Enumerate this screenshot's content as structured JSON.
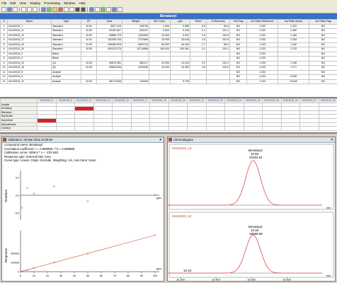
{
  "menu": [
    "File",
    "Edit",
    "View",
    "Display",
    "Processing",
    "Window",
    "Help"
  ],
  "results": {
    "title": "Benalaxyl",
    "columns": [
      "#",
      "Name",
      "Type",
      "RT",
      "Area",
      "Weight",
      "Std. Conc.",
      "ppb",
      "%Dev",
      "% Recovery",
      "S/N Flag",
      "Ion Ratio Reference",
      "Ion Ratio Actual",
      "Ion Ratio Flag"
    ],
    "rows": [
      [
        "1",
        "04142015_7",
        "Standard",
        "10.51",
        "3627.415",
        "105790",
        "1.000",
        "0.985",
        "-3.5",
        "96.5",
        "NO",
        "1.233",
        "1.422",
        "NO"
      ],
      [
        "2",
        "04142015_11",
        "Standard",
        "10.50",
        "20162.607",
        "494147",
        "5.000",
        "5.105",
        "2.1",
        "102.1",
        "NO",
        "1.233",
        "1.350",
        "NO"
      ],
      [
        "3",
        "04142015_13",
        "Standard",
        "10.50",
        "39889.779",
        "1100383",
        "10.000",
        "9.951",
        "0.5",
        "100.5",
        "NO",
        "1.233",
        "1.198",
        "NO"
      ],
      [
        "4",
        "04142015_17",
        "Standard",
        "10.51",
        "102259.703",
        "2737895",
        "25.000",
        "25.618",
        "2.5",
        "102.5",
        "NO",
        "1.233",
        "1.254",
        "NO"
      ],
      [
        "5",
        "04142015_19",
        "Standard",
        "10.50",
        "196483.578",
        "5320734",
        "50.000",
        "49.169",
        "-1.7",
        "98.3",
        "NO",
        "1.233",
        "1.182",
        "NO"
      ],
      [
        "6",
        "04142015_24",
        "Standard",
        "10.50",
        "400313.375",
        "10714656",
        "100.000",
        "100.081",
        "0.1",
        "100.1",
        "NO",
        "1.233",
        "1.210",
        "NO"
      ],
      [
        "7",
        "04142015_2",
        "Blank",
        "",
        "",
        "",
        "",
        "",
        "",
        "",
        "NO",
        "1.233",
        "",
        "NO"
      ],
      [
        "8",
        "04142015_4",
        "Blank",
        "",
        "",
        "",
        "",
        "",
        "",
        "",
        "NO",
        "1.233",
        "",
        "NO"
      ],
      [
        "9",
        "04142015_10",
        "QC",
        "10.50",
        "40672.061",
        "982217",
        "10.000",
        "10.224",
        "2.2",
        "102.2",
        "NO",
        "1.233",
        "1.246",
        "NO"
      ],
      [
        "10",
        "04142015_16",
        "QC",
        "10.50",
        "40628.926",
        "1023536",
        "10.000",
        "10.263",
        "2.6",
        "102.6",
        "NO",
        "1.233",
        "1.271",
        "NO"
      ],
      [
        "11",
        "04142015_5",
        "Analyte",
        "",
        "",
        "",
        "",
        "",
        "",
        "",
        "NO",
        "1.233",
        "",
        "NO"
      ],
      [
        "12",
        "04142015_6",
        "Analyte",
        "",
        "",
        "",
        "",
        "",
        "",
        "",
        "NO",
        "1.233",
        "0.000",
        "NO"
      ],
      [
        "13",
        "04142015_12",
        "Analyte",
        "10.50",
        "38713.628",
        "104945",
        "",
        "5.735",
        "",
        "",
        "NO",
        "1.233",
        "13.640",
        "NO"
      ]
    ]
  },
  "heatmap": {
    "corner": "",
    "columns": [
      "04142015_5",
      "04142015_6",
      "04142015_12",
      "04142015_10",
      "04142015_16",
      "04142015_17",
      "04142015_19",
      "04142015_20",
      "04142015_21",
      "04142015_22",
      "04142015_23",
      "04142015_24",
      "04142015_25",
      "04142015_26",
      "04142015_27",
      "04142015_28"
    ],
    "rows": [
      "Analyte",
      "Benalaxyl",
      "Bitertanol",
      "Bupirimate",
      "Buprofezin",
      "Butocarboxim",
      "Carbaryl"
    ],
    "red_cells": [
      [
        1,
        2
      ],
      [
        4,
        0
      ]
    ]
  },
  "calibration": {
    "title": "Calibration: 06 Mar 2016 16:39:00",
    "lines": [
      "Compound name: Benalaxyl",
      "Correlation coefficient: r = 0.999890, r^2 = 0.999889",
      "Calibration curve: 4006.6 * x + -232.548",
      "Response type: External Std, Area",
      "Curve type: Linear, Origin: Exclude, Weighting: 1/x, Axis trans: None"
    ],
    "residual_label": "Residual",
    "response_label": "Response",
    "unit": "ppb",
    "x_ticks": [
      "0",
      "10",
      "20",
      "30",
      "40",
      "50",
      "60",
      "70",
      "80",
      "90",
      "100"
    ],
    "residual_ticks": [
      "5.0",
      "0.0",
      "-5.0"
    ],
    "response_ticks": [
      "200000",
      "100000",
      "0"
    ]
  },
  "chart_data": [
    {
      "type": "scatter",
      "title": "",
      "ylabel": "Residual",
      "xlabel": "ppb",
      "x": [
        1,
        5,
        10,
        25,
        50,
        100
      ],
      "y": [
        -3.5,
        2.1,
        0.5,
        2.5,
        -1.7,
        0.1
      ],
      "xlim": [
        0,
        100
      ],
      "ylim": [
        -7,
        7
      ]
    },
    {
      "type": "line",
      "title": "",
      "ylabel": "Response",
      "xlabel": "ppb",
      "x": [
        1,
        5,
        10,
        25,
        50,
        100
      ],
      "y": [
        3627,
        20163,
        39890,
        102260,
        196484,
        400313
      ],
      "xlim": [
        0,
        100
      ],
      "ylim": [
        0,
        450000
      ]
    },
    {
      "type": "line",
      "series": [
        {
          "name": "04142015_12",
          "peak_label": "Benalaxyl",
          "rt": "10.50",
          "value": "20182.61"
        }
      ],
      "xlim": [
        10.3,
        10.7
      ]
    },
    {
      "type": "line",
      "series": [
        {
          "name": "04142015_12",
          "peak_label": "Benalaxyl",
          "rt": "10.50",
          "value": "19995.58"
        }
      ],
      "xlim": [
        10.3,
        10.7
      ]
    }
  ],
  "chromatogram": {
    "title": "Chromatogram",
    "trace_name": "04142015_12",
    "peak1": {
      "name": "Benalaxyl",
      "rt": "10.50",
      "area": "20182.61"
    },
    "peak2": {
      "name": "Benalaxyl",
      "rt": "10.50",
      "area": "19995.58"
    },
    "minor_peak": "10.20",
    "unit": "min",
    "x_ticks": [
      "10.300",
      "10.400",
      "10.500",
      "10.600"
    ]
  }
}
